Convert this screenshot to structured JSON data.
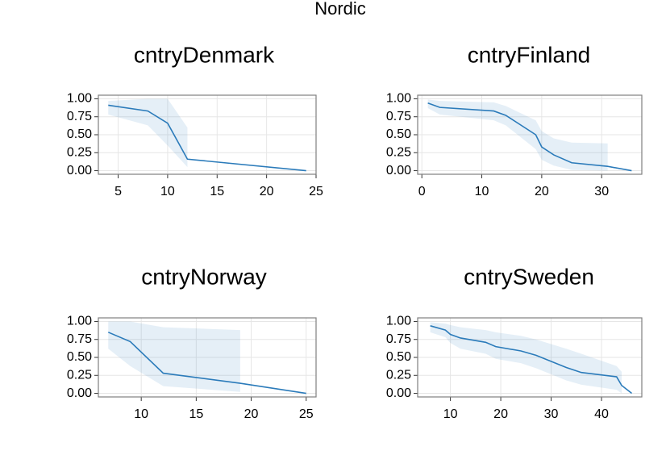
{
  "title": "Nordic",
  "chart_data": [
    {
      "type": "line",
      "title": "cntryDenmark",
      "x": [
        4,
        8,
        10,
        12,
        24
      ],
      "series": [
        {
          "color": "#2b7bba",
          "values": [
            0.91,
            0.83,
            0.66,
            0.16,
            0
          ],
          "upper": [
            0.97,
            1.0,
            1.0,
            0.6,
            null
          ],
          "lower": [
            0.78,
            0.63,
            0.35,
            0.05,
            null
          ]
        }
      ],
      "xlim": [
        3,
        25
      ],
      "xticks": [
        5,
        10,
        15,
        20,
        25
      ],
      "ylim": [
        -0.05,
        1.05
      ],
      "yticks": [
        {
          "value": 0,
          "label": "0.00"
        },
        {
          "value": 0.25,
          "label": "0.25"
        },
        {
          "value": 0.5,
          "label": "0.50"
        },
        {
          "value": 0.75,
          "label": "0.75"
        },
        {
          "value": 1,
          "label": "1.00"
        }
      ],
      "grid": true
    },
    {
      "type": "line",
      "title": "cntryFinland",
      "x": [
        1,
        3,
        12,
        14,
        19,
        20,
        22,
        25,
        31,
        35
      ],
      "series": [
        {
          "color": "#2b7bba",
          "values": [
            0.94,
            0.88,
            0.83,
            0.77,
            0.5,
            0.33,
            0.22,
            0.11,
            0.06,
            0
          ],
          "upper": [
            0.99,
            0.97,
            0.95,
            0.9,
            0.7,
            0.55,
            0.45,
            0.39,
            0.38,
            null
          ],
          "lower": [
            0.87,
            0.78,
            0.7,
            0.63,
            0.3,
            0.15,
            0.07,
            0.01,
            0,
            null
          ]
        }
      ],
      "xlim": [
        -0.7,
        36.7
      ],
      "xticks": [
        0,
        10,
        20,
        30
      ],
      "ylim": [
        -0.05,
        1.05
      ],
      "yticks": [
        {
          "value": 0,
          "label": "0.00"
        },
        {
          "value": 0.25,
          "label": "0.25"
        },
        {
          "value": 0.5,
          "label": "0.50"
        },
        {
          "value": 0.75,
          "label": "0.75"
        },
        {
          "value": 1,
          "label": "1.00"
        }
      ],
      "grid": true
    },
    {
      "type": "line",
      "title": "cntryNorway",
      "x": [
        7,
        9,
        12,
        19,
        25
      ],
      "series": [
        {
          "color": "#2b7bba",
          "values": [
            0.85,
            0.72,
            0.28,
            0.14,
            0
          ],
          "upper": [
            1.0,
            1.0,
            0.92,
            0.88,
            null
          ],
          "lower": [
            0.62,
            0.38,
            0.1,
            0.02,
            null
          ]
        }
      ],
      "xlim": [
        6.1,
        25.9
      ],
      "xticks": [
        10,
        15,
        20,
        25
      ],
      "ylim": [
        -0.05,
        1.05
      ],
      "yticks": [
        {
          "value": 0,
          "label": "0.00"
        },
        {
          "value": 0.25,
          "label": "0.25"
        },
        {
          "value": 0.5,
          "label": "0.50"
        },
        {
          "value": 0.75,
          "label": "0.75"
        },
        {
          "value": 1,
          "label": "1.00"
        }
      ],
      "grid": true
    },
    {
      "type": "line",
      "title": "cntrySweden",
      "x": [
        6,
        9,
        10,
        12,
        17,
        19,
        24,
        27,
        33,
        36,
        43,
        44,
        46
      ],
      "series": [
        {
          "color": "#2b7bba",
          "values": [
            0.94,
            0.88,
            0.82,
            0.77,
            0.71,
            0.65,
            0.59,
            0.53,
            0.36,
            0.29,
            0.23,
            0.11,
            0
          ],
          "upper": [
            0.99,
            0.97,
            0.95,
            0.92,
            0.88,
            0.85,
            0.8,
            0.75,
            0.62,
            0.55,
            0.38,
            0.3,
            null
          ],
          "lower": [
            0.85,
            0.78,
            0.7,
            0.62,
            0.55,
            0.48,
            0.42,
            0.35,
            0.18,
            0.12,
            0.05,
            0,
            null
          ]
        }
      ],
      "xlim": [
        3.5,
        48
      ],
      "xticks": [
        10,
        20,
        30,
        40
      ],
      "ylim": [
        -0.05,
        1.05
      ],
      "yticks": [
        {
          "value": 0,
          "label": "0.00"
        },
        {
          "value": 0.25,
          "label": "0.25"
        },
        {
          "value": 0.5,
          "label": "0.50"
        },
        {
          "value": 0.75,
          "label": "0.75"
        },
        {
          "value": 1,
          "label": "1.00"
        }
      ],
      "grid": true
    }
  ]
}
